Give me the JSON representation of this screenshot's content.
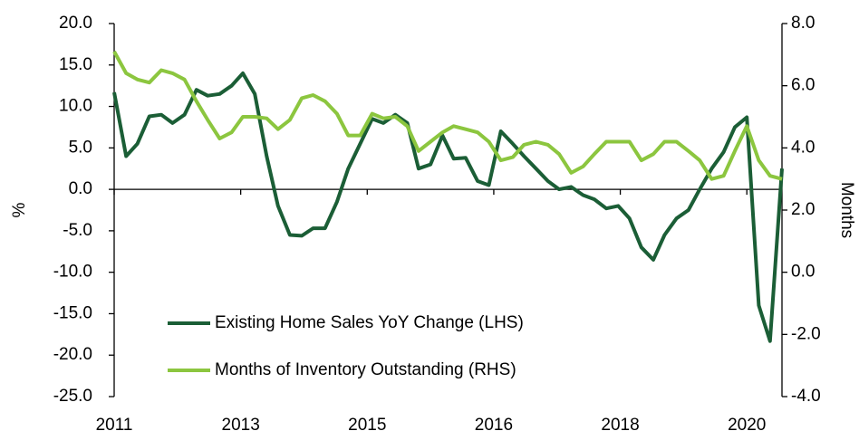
{
  "chart_data": {
    "type": "line",
    "ylabel": "%",
    "y2label": "Months",
    "x": [
      2011,
      2011.17,
      2011.33,
      2011.5,
      2011.67,
      2011.83,
      2012,
      2012.17,
      2012.33,
      2012.5,
      2012.67,
      2012.83,
      2013,
      2013.17,
      2013.33,
      2013.5,
      2013.67,
      2013.83,
      2014,
      2014.17,
      2014.33,
      2014.5,
      2014.67,
      2014.83,
      2015,
      2015.17,
      2015.33,
      2015.5,
      2015.67,
      2015.83,
      2016,
      2016.17,
      2016.33,
      2016.5,
      2016.67,
      2016.83,
      2017,
      2017.17,
      2017.33,
      2017.5,
      2017.67,
      2017.83,
      2018,
      2018.17,
      2018.33,
      2018.5,
      2018.67,
      2018.83,
      2019,
      2019.17,
      2019.33,
      2019.5,
      2019.67,
      2019.83,
      2020,
      2020.17,
      2020.33,
      2020.5
    ],
    "series": [
      {
        "name": "Existing Home Sales YoY Change (LHS)",
        "color": "#1b5e36",
        "axis": "y",
        "values": [
          11.7,
          4.0,
          5.5,
          8.8,
          9.0,
          8.0,
          9.0,
          12.0,
          11.3,
          11.5,
          12.5,
          14.0,
          11.5,
          4.0,
          -2.0,
          -5.5,
          -5.6,
          -4.7,
          -4.7,
          -1.5,
          2.5,
          5.5,
          8.5,
          8.0,
          9.0,
          8.0,
          2.5,
          3.0,
          6.5,
          3.7,
          3.8,
          1.0,
          0.5,
          7.0,
          5.5,
          4.0,
          2.5,
          1.0,
          0.0,
          0.3,
          -0.7,
          -1.2,
          -2.3,
          -2.0,
          -3.5,
          -7.0,
          -8.5,
          -5.5,
          -3.5,
          -2.5,
          0.0,
          2.5,
          4.5,
          7.5,
          8.7,
          -14.0,
          -18.3,
          2.5
        ]
      },
      {
        "name": "Months of Inventory Outstanding (RHS)",
        "color": "#8cc63f",
        "axis": "y2",
        "values": [
          7.1,
          6.4,
          6.2,
          6.1,
          6.5,
          6.4,
          6.2,
          5.5,
          4.9,
          4.3,
          4.5,
          5.0,
          5.0,
          4.95,
          4.6,
          4.9,
          5.6,
          5.7,
          5.5,
          5.1,
          4.4,
          4.4,
          5.1,
          4.95,
          5.0,
          4.7,
          3.9,
          4.2,
          4.5,
          4.7,
          4.6,
          4.5,
          4.2,
          3.6,
          3.7,
          4.1,
          4.2,
          4.1,
          3.8,
          3.2,
          3.4,
          3.8,
          4.2,
          4.2,
          4.2,
          3.6,
          3.8,
          4.2,
          4.2,
          3.9,
          3.6,
          3.0,
          3.1,
          3.9,
          4.7,
          3.6,
          3.1,
          3.0
        ]
      }
    ],
    "xlim": [
      2011,
      2020.5
    ],
    "xticks": [
      {
        "value": 2011,
        "label": "2011"
      },
      {
        "value": 2012.8,
        "label": "2013"
      },
      {
        "value": 2014.6,
        "label": "2015"
      },
      {
        "value": 2016.4,
        "label": "2016"
      },
      {
        "value": 2018.2,
        "label": "2018"
      },
      {
        "value": 2020,
        "label": "2020"
      }
    ],
    "ylim": [
      -25,
      20
    ],
    "yticks": [
      {
        "value": 20,
        "label": "20.0"
      },
      {
        "value": 15,
        "label": "15.0"
      },
      {
        "value": 10,
        "label": "10.0"
      },
      {
        "value": 5,
        "label": "5.0"
      },
      {
        "value": 0,
        "label": "0.0"
      },
      {
        "value": -5,
        "label": "-5.0"
      },
      {
        "value": -10,
        "label": "-10.0"
      },
      {
        "value": -15,
        "label": "-15.0"
      },
      {
        "value": -20,
        "label": "-20.0"
      },
      {
        "value": -25,
        "label": "-25.0"
      }
    ],
    "y2lim": [
      -4,
      8
    ],
    "y2ticks": [
      {
        "value": 8,
        "label": "8.0"
      },
      {
        "value": 6,
        "label": "6.0"
      },
      {
        "value": 4,
        "label": "4.0"
      },
      {
        "value": 2,
        "label": "2.0"
      },
      {
        "value": 0,
        "label": "0.0"
      },
      {
        "value": -2,
        "label": "-2.0"
      },
      {
        "value": -4,
        "label": "-4.0"
      }
    ],
    "legend": "lower-left"
  }
}
